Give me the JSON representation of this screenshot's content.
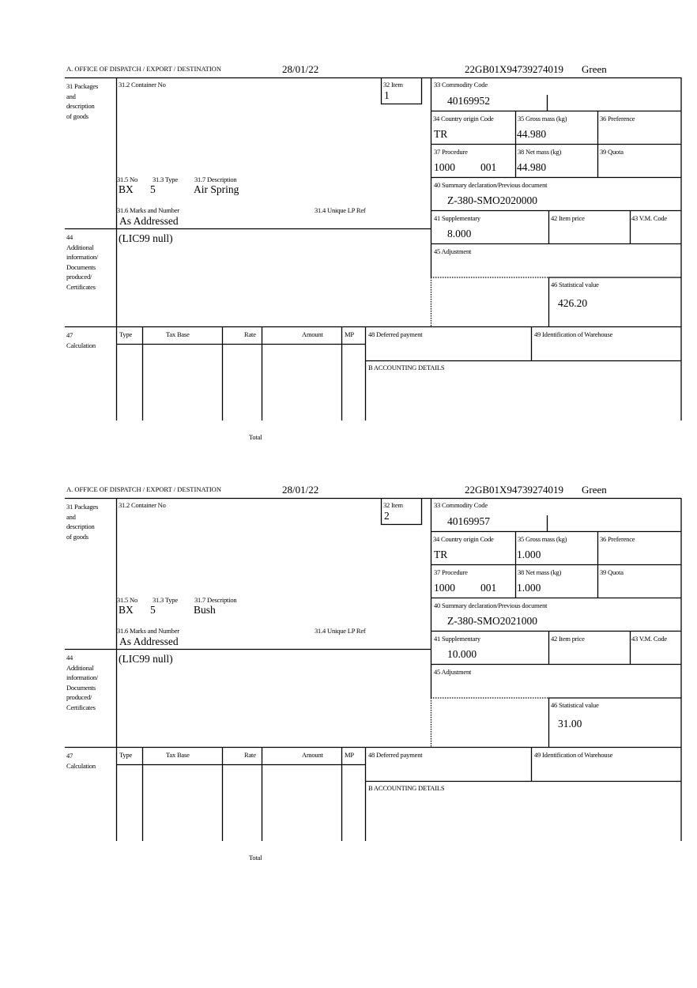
{
  "labels": {
    "office": "A.  OFFICE OF DISPATCH / EXPORT / DESTINATION",
    "box31": "31 Packages\nand\ndescription\nof goods",
    "container_no": "31.2 Container No",
    "item": "32 Item",
    "no": "31.5 No",
    "type": "31.3 Type",
    "description": "31.7 Description",
    "marks": "31.6 Marks and Number",
    "unique_lp": "31.4 Unique LP Ref",
    "commodity": "33 Commodity Code",
    "country_origin": "34 Country origin Code",
    "gross_mass": "35 Gross mass (kg)",
    "preference": "36 Preference",
    "procedure": "37 Procedure",
    "net_mass": "38 Net mass (kg)",
    "quota": "39 Quota",
    "summary_decl": "40 Summary declaration/Previous document",
    "supplementary": "41 Supplementary",
    "item_price": "42 Item price",
    "vm_code": "43 V.M. Code",
    "box44": "44\nAdditional\ninformation/\nDocuments\nproduced/\nCertificates",
    "adjustment": "45 Adjustment",
    "statistical": "46 Statistical value",
    "box47": "47\nCalculation",
    "calc_type": "Type",
    "calc_tax_base": "Tax Base",
    "calc_rate": "Rate",
    "calc_amount": "Amount",
    "calc_mp": "MP",
    "total": "Total",
    "deferred": "48 Deferred payment",
    "warehouse": "49 Identification of Warehouse",
    "accounting": "B ACCOUNTING DETAILS"
  },
  "items": [
    {
      "date": "28/01/22",
      "mrn": "22GB01X94739274019",
      "route": "Green",
      "item_no": "1",
      "no": "BX",
      "type": "5",
      "description": "Air Spring",
      "marks": "As Addressed",
      "commodity": "40169952",
      "country_origin": "TR",
      "gross_mass": "44.980",
      "procedure": "1000",
      "procedure_add": "001",
      "net_mass": "44.980",
      "summary_decl": "Z-380-SMO2020000",
      "supplementary": "8.000",
      "additional_info": "(LIC99 null)",
      "statistical": "426.20"
    },
    {
      "date": "28/01/22",
      "mrn": "22GB01X94739274019",
      "route": "Green",
      "item_no": "2",
      "no": "BX",
      "type": "5",
      "description": "Bush",
      "marks": "As Addressed",
      "commodity": "40169957",
      "country_origin": "TR",
      "gross_mass": "1.000",
      "procedure": "1000",
      "procedure_add": "001",
      "net_mass": "1.000",
      "summary_decl": "Z-380-SMO2021000",
      "supplementary": "10.000",
      "additional_info": "(LIC99 null)",
      "statistical": "31.00"
    }
  ]
}
